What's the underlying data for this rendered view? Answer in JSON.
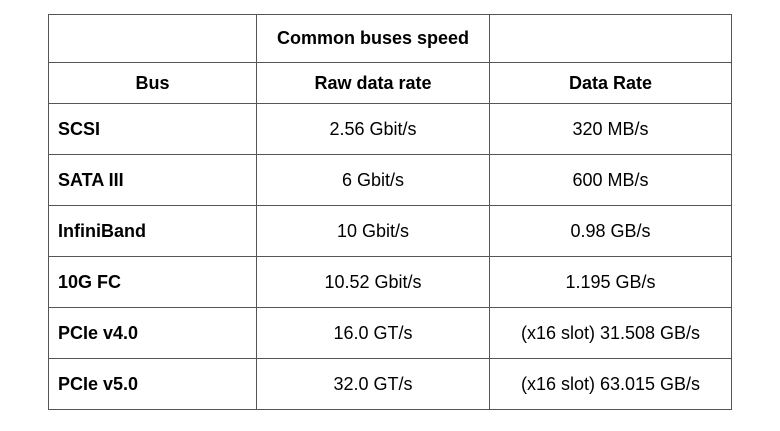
{
  "table": {
    "title": "Common buses speed",
    "headers": [
      "Bus",
      "Raw data rate",
      "Data Rate"
    ],
    "rows": [
      {
        "bus": "SCSI",
        "raw": "2.56 Gbit/s",
        "rate": "320 MB/s"
      },
      {
        "bus": "SATA III",
        "raw": "6 Gbit/s",
        "rate": "600 MB/s"
      },
      {
        "bus": "InfiniBand",
        "raw": "10 Gbit/s",
        "rate": "0.98 GB/s"
      },
      {
        "bus": "10G FC",
        "raw": "10.52 Gbit/s",
        "rate": "1.195 GB/s"
      },
      {
        "bus": "PCIe v4.0",
        "raw": "16.0 GT/s",
        "rate": "(x16 slot) 31.508 GB/s"
      },
      {
        "bus": "PCIe v5.0",
        "raw": "32.0 GT/s",
        "rate": "(x16 slot) 63.015 GB/s"
      }
    ]
  }
}
